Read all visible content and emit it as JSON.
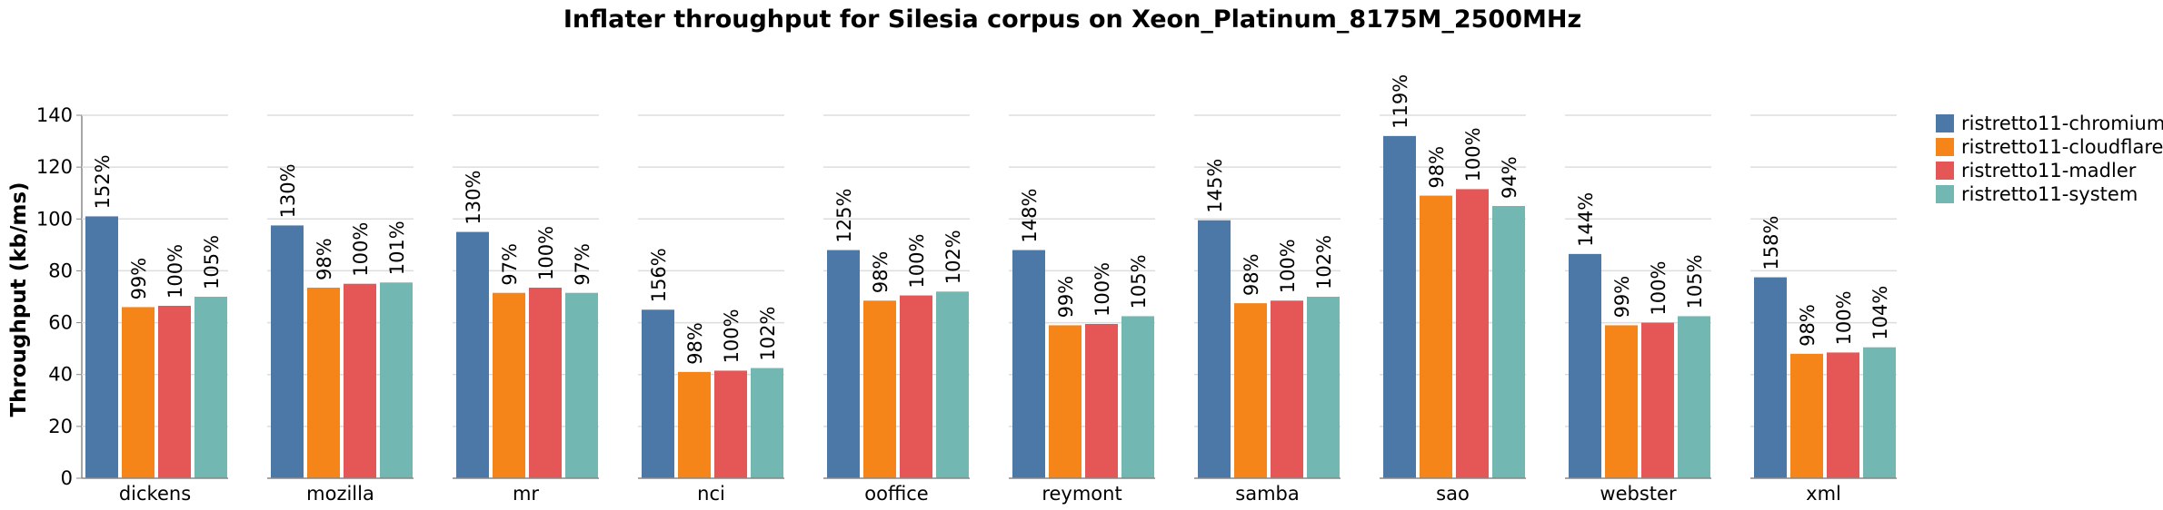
{
  "chart_data": {
    "type": "bar",
    "title": "Inflater throughput for Silesia corpus on Xeon_Platinum_8175M_2500MHz",
    "ylabel": "Throughput (kb/ms)",
    "xlabel": "",
    "ylim": [
      0,
      140
    ],
    "yticks": [
      0,
      20,
      40,
      60,
      80,
      100,
      120,
      140
    ],
    "grid": true,
    "legend_position": "right",
    "facets": [
      "dickens",
      "mozilla",
      "mr",
      "nci",
      "ooffice",
      "reymont",
      "samba",
      "sao",
      "webster",
      "xml"
    ],
    "series": [
      {
        "name": "ristretto11-chromium",
        "color": "#4c78a8",
        "values": [
          101,
          97.5,
          95,
          65,
          88,
          88,
          99.5,
          132,
          86.5,
          77.5
        ],
        "labels": [
          "152%",
          "130%",
          "130%",
          "156%",
          "125%",
          "148%",
          "145%",
          "119%",
          "144%",
          "158%"
        ]
      },
      {
        "name": "ristretto11-cloudflare",
        "color": "#f58518",
        "values": [
          66,
          73.5,
          71.5,
          41,
          68.5,
          59,
          67.5,
          109,
          59,
          48
        ],
        "labels": [
          "99%",
          "98%",
          "97%",
          "98%",
          "98%",
          "99%",
          "98%",
          "98%",
          "99%",
          "98%"
        ]
      },
      {
        "name": "ristretto11-madler",
        "color": "#e45756",
        "values": [
          66.5,
          75,
          73.5,
          41.5,
          70.5,
          59.5,
          68.5,
          111.5,
          60,
          48.5
        ],
        "labels": [
          "100%",
          "100%",
          "100%",
          "100%",
          "100%",
          "100%",
          "100%",
          "100%",
          "100%",
          "100%"
        ]
      },
      {
        "name": "ristretto11-system",
        "color": "#72b7b2",
        "values": [
          70,
          75.5,
          71.5,
          42.5,
          72,
          62.5,
          70,
          105,
          62.5,
          50.5
        ],
        "labels": [
          "105%",
          "101%",
          "97%",
          "102%",
          "102%",
          "105%",
          "102%",
          "94%",
          "105%",
          "104%"
        ]
      }
    ]
  }
}
